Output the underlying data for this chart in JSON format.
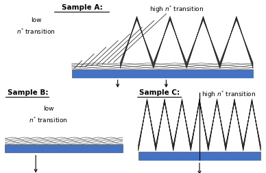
{
  "bg_color": "#ffffff",
  "blue_color": "#4472C4",
  "line_color": "#222222",
  "title_A": "Sample A:",
  "title_B": "Sample B:",
  "title_C": "Sample C:",
  "label_high_A": "high $n^{*}$ transition",
  "label_high_C": "high $n^{*}$ transition",
  "label_low_1": "low",
  "label_low_2": "$n^{*}$ transition"
}
